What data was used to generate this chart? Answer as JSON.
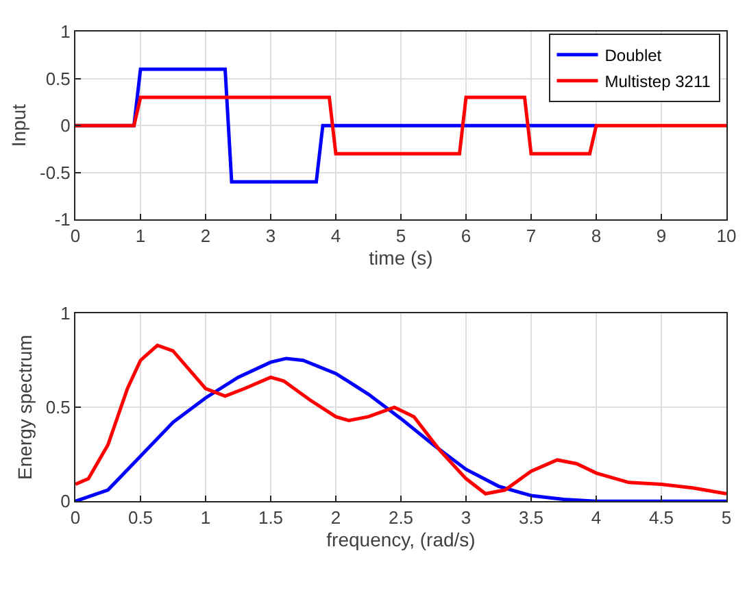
{
  "chart_data": [
    {
      "type": "line",
      "xlabel": "time (s)",
      "ylabel": "Input",
      "xlim": [
        0,
        10
      ],
      "ylim": [
        -1,
        1
      ],
      "xticks": [
        0,
        1,
        2,
        3,
        4,
        5,
        6,
        7,
        8,
        9,
        10
      ],
      "yticks": [
        -1,
        -0.5,
        0,
        0.5,
        1
      ],
      "grid": true,
      "legend": "top right",
      "line_style": "solid",
      "series": [
        {
          "name": "Doublet",
          "color": "#0000ff",
          "x": [
            0,
            0.9,
            1.0,
            2.3,
            2.4,
            3.7,
            3.8,
            8
          ],
          "values": [
            0,
            0,
            0.6,
            0.6,
            -0.6,
            -0.6,
            0,
            0
          ]
        },
        {
          "name": "Multistep 3211",
          "color": "#ff0000",
          "x": [
            0,
            0.9,
            1.0,
            3.9,
            4.0,
            5.9,
            6.0,
            6.9,
            7.0,
            7.9,
            8.0,
            10
          ],
          "values": [
            0,
            0,
            0.3,
            0.3,
            -0.3,
            -0.3,
            0.3,
            0.3,
            -0.3,
            -0.3,
            0,
            0
          ]
        }
      ]
    },
    {
      "type": "line",
      "xlabel": "frequency, (rad/s)",
      "ylabel": "Energy spectrum",
      "xlim": [
        0,
        5
      ],
      "ylim": [
        0,
        1
      ],
      "xticks": [
        0,
        0.5,
        1,
        1.5,
        2,
        2.5,
        3,
        3.5,
        4,
        4.5,
        5
      ],
      "yticks": [
        0,
        0.5,
        1
      ],
      "grid": true,
      "line_style": "solid",
      "series": [
        {
          "color": "#0000ff",
          "x": [
            0,
            0.25,
            0.5,
            0.75,
            1,
            1.25,
            1.5,
            1.62,
            1.75,
            2,
            2.25,
            2.5,
            2.75,
            3,
            3.25,
            3.5,
            3.75,
            4,
            5
          ],
          "values": [
            0,
            0.06,
            0.24,
            0.42,
            0.55,
            0.66,
            0.74,
            0.76,
            0.75,
            0.68,
            0.57,
            0.44,
            0.3,
            0.17,
            0.08,
            0.03,
            0.01,
            0,
            0
          ]
        },
        {
          "color": "#ff0000",
          "x": [
            0,
            0.1,
            0.25,
            0.4,
            0.5,
            0.63,
            0.75,
            0.9,
            1,
            1.15,
            1.3,
            1.5,
            1.6,
            1.8,
            2,
            2.1,
            2.25,
            2.45,
            2.6,
            2.8,
            3,
            3.15,
            3.3,
            3.5,
            3.7,
            3.85,
            4,
            4.25,
            4.5,
            4.75,
            5
          ],
          "values": [
            0.09,
            0.12,
            0.3,
            0.6,
            0.75,
            0.83,
            0.8,
            0.68,
            0.6,
            0.56,
            0.6,
            0.66,
            0.64,
            0.54,
            0.45,
            0.43,
            0.45,
            0.5,
            0.45,
            0.27,
            0.12,
            0.04,
            0.06,
            0.16,
            0.22,
            0.2,
            0.15,
            0.1,
            0.09,
            0.07,
            0.04
          ]
        }
      ]
    }
  ]
}
